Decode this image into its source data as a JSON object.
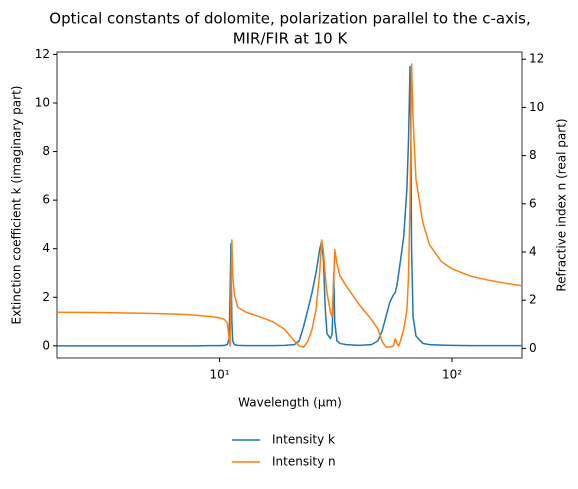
{
  "chart_data": {
    "type": "line",
    "title": "Optical constants of dolomite, polarization parallel to the c-axis,",
    "subtitle": "MIR/FIR at 10 K",
    "xlabel": "Wavelength (μm)",
    "ylabel": "Extinction coefficient k (imaginary part)",
    "y2label": "Refractive index n (real part)",
    "xscale": "log",
    "xlim": [
      2,
      200
    ],
    "xticks": [
      {
        "value": 10,
        "label": "10¹"
      },
      {
        "value": 100,
        "label": "10²"
      }
    ],
    "ylim": [
      -0.5,
      12.1
    ],
    "yticks": [
      0,
      2,
      4,
      6,
      8,
      10,
      12
    ],
    "y2lim": [
      -0.4,
      12.3
    ],
    "y2ticks": [
      0,
      2,
      4,
      6,
      8,
      10,
      12
    ],
    "legend": "below",
    "x": [
      2,
      3,
      4,
      5,
      6,
      7,
      8,
      9,
      10,
      10.5,
      10.8,
      11.0,
      11.1,
      11.2,
      11.3,
      11.4,
      11.6,
      12,
      13,
      15,
      17,
      19,
      21,
      22,
      23,
      24,
      25,
      26,
      27,
      27.5,
      28,
      28.5,
      29,
      30,
      30.5,
      31,
      31.3,
      32,
      33,
      35,
      40,
      45,
      48,
      50,
      52,
      54,
      56,
      57,
      58,
      59,
      60,
      62,
      64,
      65,
      66,
      66.5,
      67,
      68,
      70,
      75,
      80,
      90,
      100,
      120,
      140,
      170,
      200
    ],
    "series": [
      {
        "name": "Intensity k",
        "color": "#1f77b4",
        "axis": "y",
        "values": [
          0,
          0,
          0,
          0,
          0,
          0,
          0,
          0.01,
          0.01,
          0.02,
          0.05,
          0.3,
          2.0,
          4.2,
          1.0,
          0.2,
          0.05,
          0.02,
          0.01,
          0.01,
          0.01,
          0.02,
          0.05,
          0.2,
          0.8,
          1.5,
          2.2,
          3.0,
          4.0,
          4.3,
          3.5,
          1.5,
          0.5,
          0.3,
          0.5,
          3.0,
          1.0,
          0.2,
          0.1,
          0.05,
          0.02,
          0.05,
          0.2,
          0.6,
          1.2,
          1.8,
          2.1,
          2.2,
          2.5,
          3.0,
          3.5,
          4.5,
          6.5,
          8.5,
          11.5,
          9.0,
          4.0,
          1.2,
          0.4,
          0.1,
          0.05,
          0.03,
          0.02,
          0.01,
          0.01,
          0.01,
          0.01
        ]
      },
      {
        "name": "Intensity n",
        "color": "#ff7f0e",
        "axis": "y2",
        "values": [
          1.5,
          1.49,
          1.47,
          1.45,
          1.43,
          1.41,
          1.37,
          1.33,
          1.27,
          1.2,
          1.05,
          0.4,
          0.1,
          2.0,
          4.5,
          3.0,
          2.2,
          1.7,
          1.5,
          1.3,
          1.1,
          0.8,
          0.3,
          0.1,
          0.05,
          0.3,
          0.8,
          1.6,
          3.2,
          4.5,
          4.0,
          3.0,
          2.3,
          1.5,
          1.3,
          2.8,
          4.1,
          3.5,
          3.0,
          2.6,
          1.8,
          1.2,
          0.8,
          0.3,
          0.05,
          0.05,
          0.1,
          0.4,
          0.2,
          0.1,
          0.3,
          0.8,
          1.6,
          3.0,
          6.0,
          9.0,
          11.8,
          9.5,
          7.0,
          5.2,
          4.3,
          3.6,
          3.3,
          3.0,
          2.85,
          2.7,
          2.6
        ]
      }
    ]
  }
}
